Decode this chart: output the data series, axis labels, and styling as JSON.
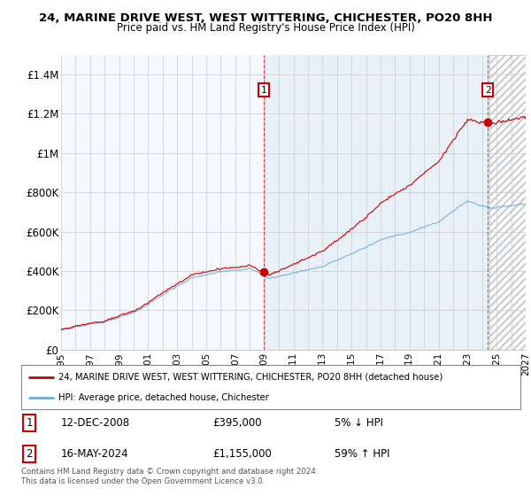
{
  "title": "24, MARINE DRIVE WEST, WEST WITTERING, CHICHESTER, PO20 8HH",
  "subtitle": "Price paid vs. HM Land Registry's House Price Index (HPI)",
  "legend_line1": "24, MARINE DRIVE WEST, WEST WITTERING, CHICHESTER, PO20 8HH (detached house)",
  "legend_line2": "HPI: Average price, detached house, Chichester",
  "transaction1_label": "1",
  "transaction1_date": "12-DEC-2008",
  "transaction1_price": "£395,000",
  "transaction1_hpi": "5% ↓ HPI",
  "transaction1_year": 2008.95,
  "transaction1_value": 395000,
  "transaction2_label": "2",
  "transaction2_date": "16-MAY-2024",
  "transaction2_price": "£1,155,000",
  "transaction2_hpi": "59% ↑ HPI",
  "transaction2_year": 2024.38,
  "transaction2_value": 1155000,
  "footer": "Contains HM Land Registry data © Crown copyright and database right 2024.\nThis data is licensed under the Open Government Licence v3.0.",
  "ylim": [
    0,
    1500000
  ],
  "yticks": [
    0,
    200000,
    400000,
    600000,
    800000,
    1000000,
    1200000,
    1400000
  ],
  "ytick_labels": [
    "£0",
    "£200K",
    "£400K",
    "£600K",
    "£800K",
    "£1M",
    "£1.2M",
    "£1.4M"
  ],
  "hpi_color": "#6baed6",
  "price_color": "#cc0000",
  "bg_fill_color": "#ddeeff",
  "hatch_color": "#c8c8c8",
  "background_color": "#ffffff",
  "grid_color": "#cccccc",
  "xlim_start": 1995,
  "xlim_end": 2027,
  "hatch_start": 2024.5
}
